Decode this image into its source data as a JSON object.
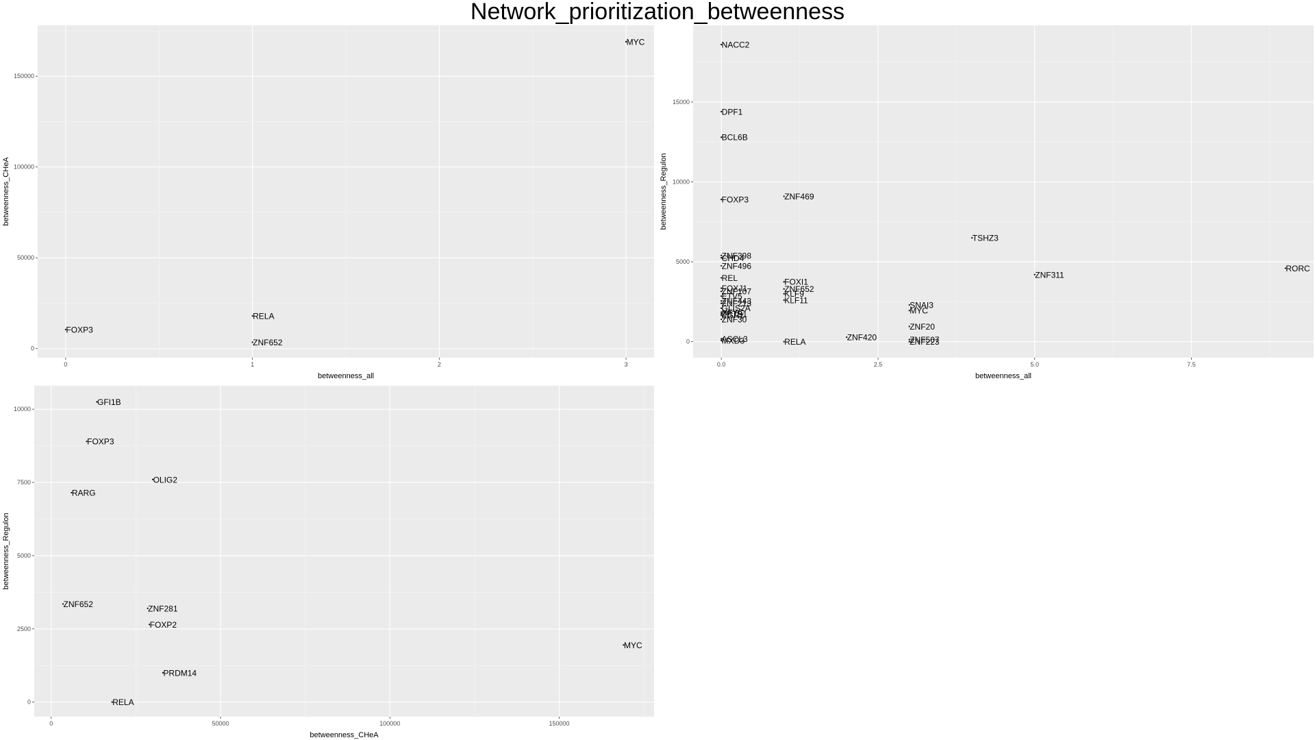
{
  "title": "Network_prioritization_betweenness",
  "style": {
    "panel_bg": "#ebebeb",
    "grid_major": "#ffffff",
    "grid_minor": "#f5f5f5",
    "text": "#000000",
    "axis_text": "#4d4d4d"
  },
  "chart_data": [
    {
      "type": "scatter",
      "title": "",
      "xlabel": "betweenness_all",
      "ylabel": "betweenness_CHeA",
      "xlim": [
        -0.15,
        3.15
      ],
      "ylim": [
        -5000,
        178000
      ],
      "x_ticks": [
        0,
        1,
        2,
        3
      ],
      "x_tick_labels": [
        "0",
        "1",
        "2",
        "3"
      ],
      "y_ticks": [
        0,
        50000,
        100000,
        150000
      ],
      "y_tick_labels": [
        "0",
        "50000",
        "100000",
        "150000"
      ],
      "grid": true,
      "points": [
        {
          "label": "MYC",
          "x": 3,
          "y": 169000
        },
        {
          "label": "RELA",
          "x": 1,
          "y": 18000
        },
        {
          "label": "FOXP3",
          "x": 0,
          "y": 10500
        },
        {
          "label": "ZNF652",
          "x": 1,
          "y": 3500
        }
      ]
    },
    {
      "type": "scatter",
      "title": "",
      "xlabel": "betweenness_all",
      "ylabel": "betweenness_Regulon",
      "xlim": [
        -0.45,
        9.45
      ],
      "ylim": [
        -1000,
        19800
      ],
      "x_ticks": [
        0,
        2.5,
        5,
        7.5
      ],
      "x_tick_labels": [
        "0.0",
        "2.5",
        "5.0",
        "7.5"
      ],
      "y_ticks": [
        0,
        5000,
        10000,
        15000
      ],
      "y_tick_labels": [
        "0",
        "5000",
        "10000",
        "15000"
      ],
      "grid": true,
      "points": [
        {
          "label": "NACC2",
          "x": 0,
          "y": 18600
        },
        {
          "label": "DPF1",
          "x": 0,
          "y": 14400
        },
        {
          "label": "BCL6B",
          "x": 0,
          "y": 12800
        },
        {
          "label": "FOXP3",
          "x": 0,
          "y": 8900
        },
        {
          "label": "ZNF469",
          "x": 1,
          "y": 9100
        },
        {
          "label": "TSHZ3",
          "x": 4,
          "y": 6500
        },
        {
          "label": "ZNF398",
          "x": 0,
          "y": 5400
        },
        {
          "label": "CHD4",
          "x": 0,
          "y": 5250
        },
        {
          "label": "ZNF496",
          "x": 0,
          "y": 4750
        },
        {
          "label": "RORC",
          "x": 9,
          "y": 4600
        },
        {
          "label": "ZNF311",
          "x": 5,
          "y": 4200
        },
        {
          "label": "REL",
          "x": 0,
          "y": 4000
        },
        {
          "label": "FOXI1",
          "x": 1,
          "y": 3750
        },
        {
          "label": "FOXJ1",
          "x": 0,
          "y": 3350
        },
        {
          "label": "ZNF652",
          "x": 1,
          "y": 3300
        },
        {
          "label": "ZNF107",
          "x": 0,
          "y": 3150
        },
        {
          "label": "KLF9",
          "x": 1,
          "y": 3000
        },
        {
          "label": "ETV5",
          "x": 0,
          "y": 2850
        },
        {
          "label": "KLF11",
          "x": 1,
          "y": 2600
        },
        {
          "label": "ZNF443",
          "x": 0,
          "y": 2550
        },
        {
          "label": "ZNF213",
          "x": 0,
          "y": 2400
        },
        {
          "label": "SNAI3",
          "x": 3,
          "y": 2300
        },
        {
          "label": "GLIS2A",
          "x": 0,
          "y": 2100
        },
        {
          "label": "MYC",
          "x": 3,
          "y": 1950
        },
        {
          "label": "NFYC",
          "x": 0,
          "y": 1850
        },
        {
          "label": "ZBTB1",
          "x": 0,
          "y": 1750
        },
        {
          "label": "EGR1",
          "x": 0,
          "y": 1650
        },
        {
          "label": "ZNF30",
          "x": 0,
          "y": 1400
        },
        {
          "label": "ZNF20",
          "x": 3,
          "y": 950
        },
        {
          "label": "ZNF420",
          "x": 2,
          "y": 280
        },
        {
          "label": "ASCL3",
          "x": 0,
          "y": 180
        },
        {
          "label": "MXD3",
          "x": 0,
          "y": 80
        },
        {
          "label": "ZNF507",
          "x": 3,
          "y": 130
        },
        {
          "label": "RELA",
          "x": 1,
          "y": 0
        },
        {
          "label": "ZNF223",
          "x": 3,
          "y": 0
        }
      ]
    },
    {
      "type": "scatter",
      "title": "",
      "xlabel": "betweenness_CHeA",
      "ylabel": "betweenness_Regulon",
      "xlim": [
        -5000,
        178000
      ],
      "ylim": [
        -500,
        10800
      ],
      "x_ticks": [
        0,
        50000,
        100000,
        150000
      ],
      "x_tick_labels": [
        "0",
        "50000",
        "100000",
        "150000"
      ],
      "y_ticks": [
        0,
        2500,
        5000,
        7500,
        10000
      ],
      "y_tick_labels": [
        "0",
        "2500",
        "5000",
        "7500",
        "10000"
      ],
      "grid": true,
      "points": [
        {
          "label": "GFI1B",
          "x": 13500,
          "y": 10250
        },
        {
          "label": "FOXP3",
          "x": 10500,
          "y": 8900
        },
        {
          "label": "OLIG2",
          "x": 30000,
          "y": 7600
        },
        {
          "label": "RARG",
          "x": 6000,
          "y": 7150
        },
        {
          "label": "ZNF652",
          "x": 3500,
          "y": 3350
        },
        {
          "label": "ZNF281",
          "x": 28500,
          "y": 3200
        },
        {
          "label": "FOXP2",
          "x": 29000,
          "y": 2650
        },
        {
          "label": "MYC",
          "x": 169000,
          "y": 1950
        },
        {
          "label": "PRDM14",
          "x": 33000,
          "y": 1000
        },
        {
          "label": "RELA",
          "x": 18000,
          "y": 0
        }
      ]
    }
  ]
}
